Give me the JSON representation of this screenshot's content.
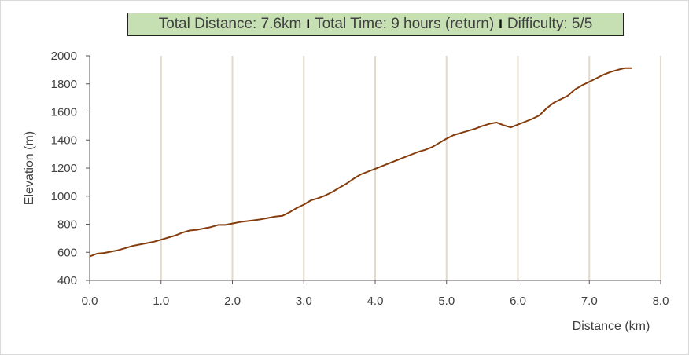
{
  "title_parts": [
    "Total Distance: 7.6km",
    "Total Time: 9 hours (return)",
    "Difficulty: 5/5"
  ],
  "title_separator": "I",
  "chart_data": {
    "type": "line",
    "title": "Total Distance: 7.6km I Total Time: 9 hours (return) I Difficulty: 5/5",
    "xlabel": "Distance (km)",
    "ylabel": "Elevation (m)",
    "xlim": [
      0.0,
      8.0
    ],
    "ylim": [
      400,
      2000
    ],
    "x_ticks": [
      "0.0",
      "1.0",
      "2.0",
      "3.0",
      "4.0",
      "5.0",
      "6.0",
      "7.0",
      "8.0"
    ],
    "y_ticks": [
      "400",
      "600",
      "800",
      "1000",
      "1200",
      "1400",
      "1600",
      "1800",
      "2000"
    ],
    "grid": "vertical",
    "legend": "none",
    "line_color": "#843c0c",
    "series": [
      {
        "x": [
          0.0,
          0.1,
          0.2,
          0.3,
          0.4,
          0.5,
          0.6,
          0.7,
          0.8,
          0.9,
          1.0,
          1.1,
          1.2,
          1.3,
          1.4,
          1.5,
          1.6,
          1.7,
          1.8,
          1.9,
          2.0,
          2.1,
          2.2,
          2.3,
          2.4,
          2.5,
          2.6,
          2.7,
          2.8,
          2.9,
          3.0,
          3.1,
          3.2,
          3.3,
          3.4,
          3.5,
          3.6,
          3.7,
          3.8,
          3.9,
          4.0,
          4.1,
          4.2,
          4.3,
          4.4,
          4.5,
          4.6,
          4.7,
          4.8,
          4.9,
          5.0,
          5.1,
          5.2,
          5.3,
          5.4,
          5.5,
          5.6,
          5.7,
          5.8,
          5.9,
          6.0,
          6.1,
          6.2,
          6.3,
          6.4,
          6.5,
          6.6,
          6.7,
          6.8,
          6.9,
          7.0,
          7.1,
          7.2,
          7.3,
          7.4,
          7.5,
          7.6
        ],
        "values": [
          570,
          590,
          595,
          605,
          615,
          630,
          645,
          655,
          665,
          675,
          690,
          705,
          720,
          740,
          755,
          760,
          770,
          780,
          795,
          795,
          805,
          815,
          822,
          828,
          835,
          845,
          855,
          860,
          885,
          915,
          940,
          970,
          985,
          1005,
          1030,
          1060,
          1090,
          1125,
          1155,
          1175,
          1195,
          1215,
          1235,
          1255,
          1275,
          1295,
          1315,
          1330,
          1350,
          1380,
          1410,
          1435,
          1450,
          1465,
          1480,
          1500,
          1515,
          1525,
          1505,
          1490,
          1510,
          1530,
          1550,
          1575,
          1625,
          1665,
          1690,
          1715,
          1760,
          1790,
          1815,
          1840,
          1865,
          1885,
          1900,
          1912,
          1912
        ]
      }
    ]
  }
}
